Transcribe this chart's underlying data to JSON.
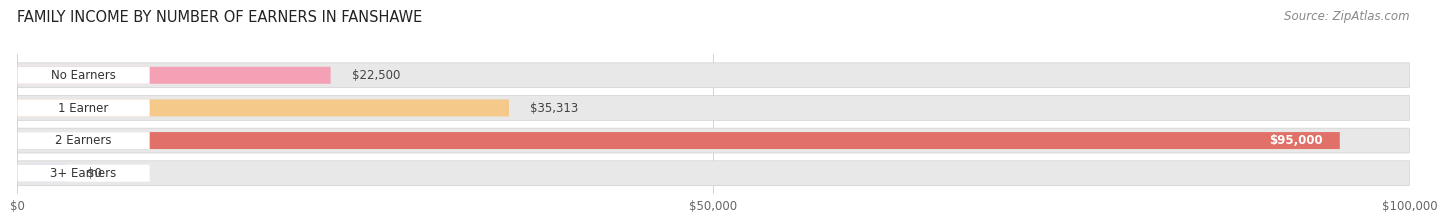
{
  "title": "FAMILY INCOME BY NUMBER OF EARNERS IN FANSHAWE",
  "source": "Source: ZipAtlas.com",
  "categories": [
    "No Earners",
    "1 Earner",
    "2 Earners",
    "3+ Earners"
  ],
  "values": [
    22500,
    35313,
    95000,
    0
  ],
  "value_labels": [
    "$22,500",
    "$35,313",
    "$95,000",
    "$0"
  ],
  "bar_colors": [
    "#f4a0b5",
    "#f5c98a",
    "#e07068",
    "#a8c0e8"
  ],
  "xlim": [
    0,
    100000
  ],
  "xticks": [
    0,
    50000,
    100000
  ],
  "xtick_labels": [
    "$0",
    "$50,000",
    "$100,000"
  ],
  "title_fontsize": 10.5,
  "source_fontsize": 8.5,
  "label_fontsize": 8.5,
  "value_fontsize": 8.5,
  "background_color": "#ffffff",
  "bar_height": 0.52,
  "row_bg_color": "#e8e8e8",
  "label_bg_color": "#ffffff"
}
